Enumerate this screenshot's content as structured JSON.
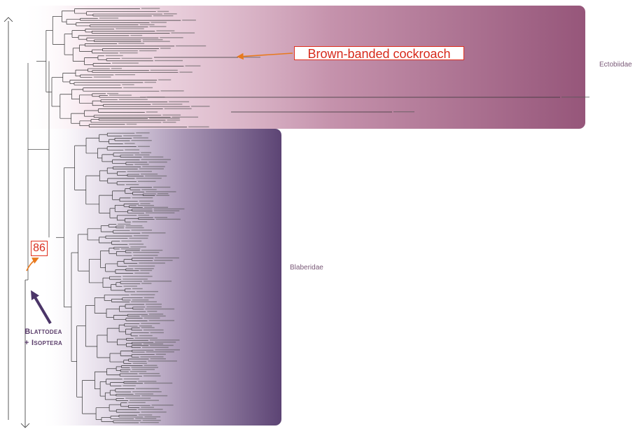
{
  "annotations": {
    "common_name": "Brown-banded cockroach",
    "support_value": "86",
    "clade_line1": "Blattodea",
    "clade_line2": "+ Isoptera"
  },
  "families": {
    "ectobiidae": "Ectobiidae",
    "blaberidae": "Blaberidae"
  },
  "colors": {
    "ectobiidae_band": "#96567a",
    "blaberidae_band": "#5c4474",
    "callout_red": "#e0301e",
    "orange_arrow": "#e8791c",
    "purple_arrow": "#4b3568",
    "branch_line": "#333333"
  },
  "highlight_tip": "Supella_longipalpa"
}
